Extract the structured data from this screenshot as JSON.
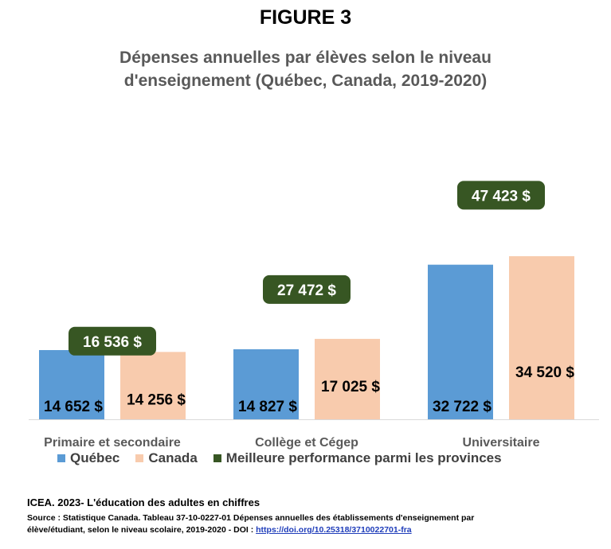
{
  "figure_label": "FIGURE 3",
  "title_line1": "Dépenses annuelles par élèves selon le niveau",
  "title_line2": "d'enseignement (Québec, Canada, 2019-2020)",
  "colors": {
    "quebec": "#5b9bd5",
    "canada": "#f8cbad",
    "best": "#375623",
    "axis": "#d9d9d9",
    "category_text": "#595959"
  },
  "chart_data": {
    "type": "bar",
    "categories": [
      "Primaire et secondaire",
      "Collège et Cégep",
      "Universitaire"
    ],
    "series": [
      {
        "name": "Québec",
        "values": [
          14652,
          14827,
          32722
        ],
        "labels": [
          "14 652  $",
          "14 827  $",
          "32 722  $"
        ]
      },
      {
        "name": "Canada",
        "values": [
          14256,
          17025,
          34520
        ],
        "labels": [
          "14 256  $",
          "17 025  $",
          "34 520  $"
        ]
      },
      {
        "name": "Meilleure performance parmi les provinces",
        "values": [
          16536,
          27472,
          47423
        ],
        "labels": [
          "16 536  $",
          "27 472  $",
          "47 423  $"
        ]
      }
    ],
    "ylim": [
      0,
      49000
    ],
    "grid": false,
    "legend_position": "bottom"
  },
  "footer": {
    "org": "ICEA. 2023- L'éducation des adultes en chiffres",
    "source_line1": "Source : Statistique Canada.  Tableau 37-10-0227-01  Dépenses annuelles des établissements d'enseignement par",
    "source_line2_prefix": "élève/étudiant, selon le niveau scolaire, 2019-2020 - DOI : ",
    "doi_link": "https://doi.org/10.25318/3710022701-fra"
  }
}
